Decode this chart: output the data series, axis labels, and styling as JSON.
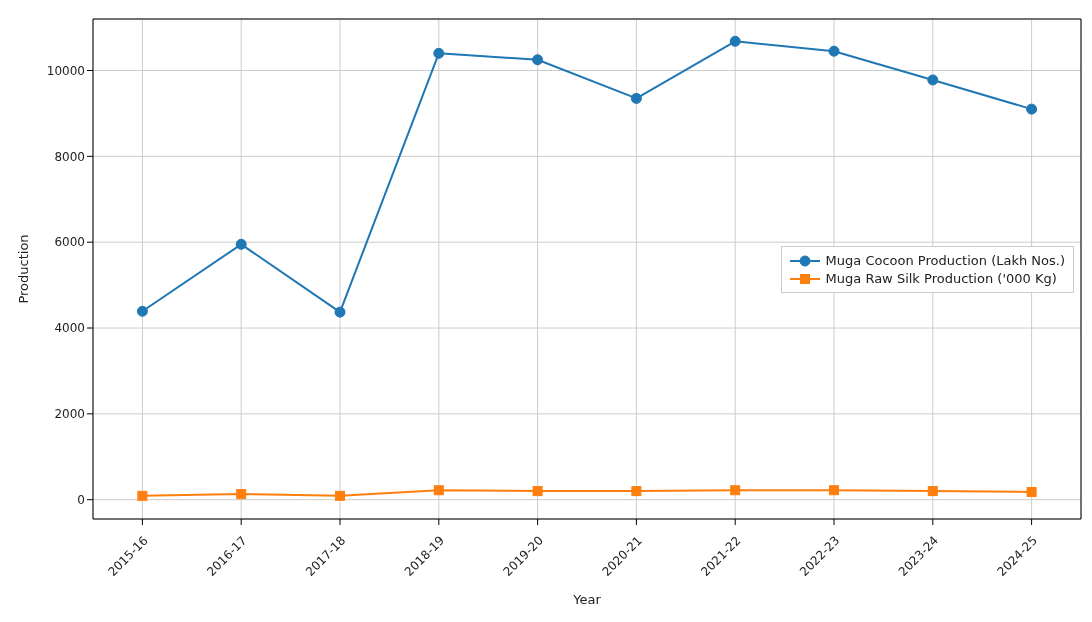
{
  "chart_data": {
    "type": "line",
    "xlabel": "Year",
    "ylabel": "Production",
    "categories": [
      "2015-16",
      "2016-17",
      "2017-18",
      "2018-19",
      "2019-20",
      "2020-21",
      "2021-22",
      "2022-23",
      "2023-24",
      "2024-25"
    ],
    "series": [
      {
        "name": "Muga Cocoon Production (Lakh Nos.)",
        "color": "#1f77b4",
        "marker": "circle",
        "values": [
          4390,
          5950,
          4370,
          10400,
          10250,
          9350,
          10680,
          10450,
          9780,
          9100
        ]
      },
      {
        "name": "Muga Raw Silk Production ('000 Kg)",
        "color": "#ff7f0e",
        "marker": "square",
        "values": [
          90,
          130,
          90,
          220,
          200,
          200,
          220,
          220,
          200,
          180
        ]
      }
    ],
    "ylim": [
      -450,
      11200
    ],
    "yticks": [
      0,
      2000,
      4000,
      6000,
      8000,
      10000
    ],
    "grid": true,
    "legend": "right",
    "line_style": "solid"
  }
}
